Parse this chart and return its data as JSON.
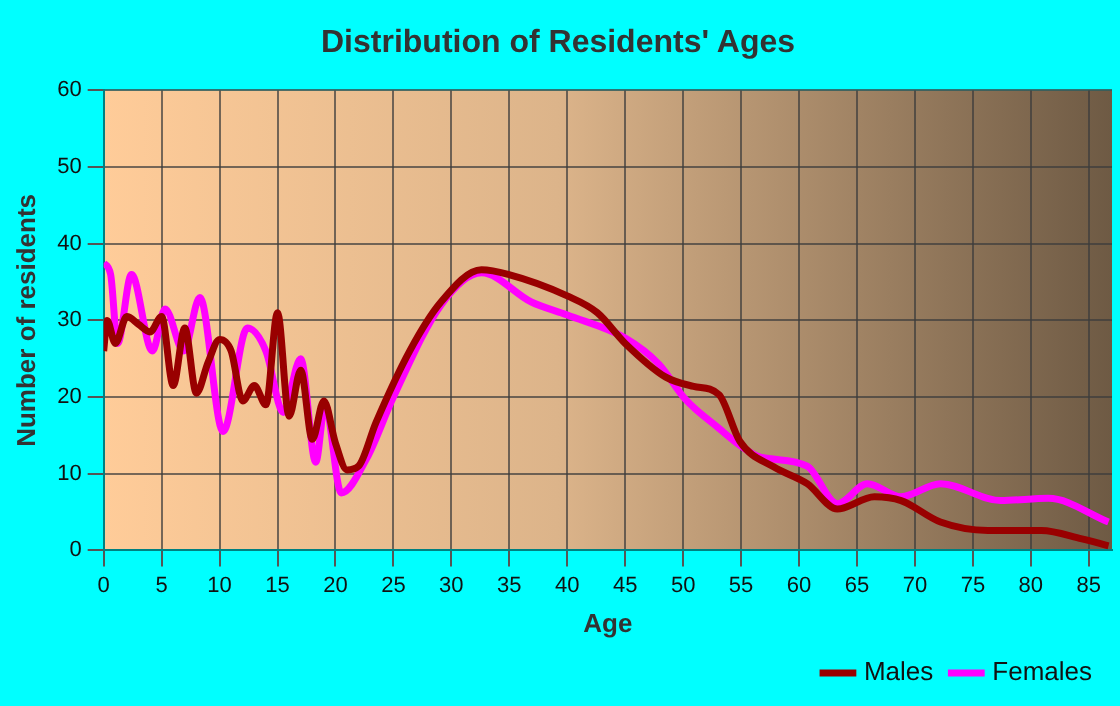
{
  "chart_data": {
    "type": "line",
    "title": "Distribution of Residents' Ages",
    "xlabel": "Age",
    "ylabel": "Number of residents",
    "xlim": [
      0,
      87
    ],
    "xticks": [
      0,
      5,
      10,
      15,
      20,
      25,
      30,
      35,
      40,
      45,
      50,
      55,
      60,
      65,
      70,
      75,
      80,
      85
    ],
    "ylim": [
      0,
      60
    ],
    "yticks": [
      0,
      10,
      20,
      30,
      40,
      50,
      60
    ],
    "grid": true,
    "legend": "bottom right",
    "marker": "none",
    "line_style": "solid",
    "series": [
      {
        "name": "Males",
        "color": "#990000",
        "x": [
          0,
          0.3,
          1,
          2,
          3,
          4,
          5,
          6,
          7,
          8,
          9,
          10,
          11,
          12,
          13,
          14,
          15,
          16,
          17,
          18,
          19,
          20,
          21,
          22,
          23.5,
          26.4,
          29.1,
          32.6,
          34.9,
          40,
          42.6,
          45,
          48.5,
          50.9,
          53.1,
          54.9,
          57.8,
          60.7,
          63.3,
          66.5,
          68.8,
          72.2,
          76.3,
          80.9,
          84.4,
          86.7
        ],
        "values": [
          26,
          30,
          27,
          30.5,
          29.5,
          28.5,
          30.5,
          21.5,
          29,
          20.5,
          24.5,
          27.5,
          26,
          19.5,
          21.5,
          19,
          31,
          17.5,
          23.5,
          14.5,
          19.5,
          14,
          10.5,
          11,
          16.7,
          26,
          32.4,
          36.6,
          36,
          33.2,
          31,
          27,
          22.6,
          21.4,
          20.3,
          14.2,
          10.9,
          8.7,
          5.4,
          7,
          6.5,
          3.7,
          2.6,
          2.6,
          1.5,
          0.6
        ]
      },
      {
        "name": "Females",
        "color": "#ff00ff",
        "x": [
          0,
          0.6,
          1.2,
          2.4,
          4.2,
          5.3,
          6.9,
          8.3,
          10.3,
          12.4,
          14,
          15.5,
          17,
          18.3,
          19.1,
          20.5,
          22.7,
          25,
          29.1,
          32.6,
          36.9,
          40,
          45,
          47.9,
          50.2,
          53.1,
          54.9,
          56.6,
          60.7,
          63.3,
          65.9,
          68.8,
          72.2,
          77.4,
          81.5,
          86.7
        ],
        "values": [
          37.5,
          36,
          27,
          36,
          26,
          31.5,
          26,
          33,
          15.5,
          29,
          26,
          18,
          25,
          11.5,
          19,
          7.5,
          12,
          20,
          32,
          36.2,
          32.4,
          30.7,
          27.7,
          24.3,
          19.7,
          15.9,
          13.7,
          12.2,
          11,
          6.1,
          8.7,
          7,
          8.7,
          6.5,
          6.8,
          3.7
        ]
      }
    ]
  }
}
